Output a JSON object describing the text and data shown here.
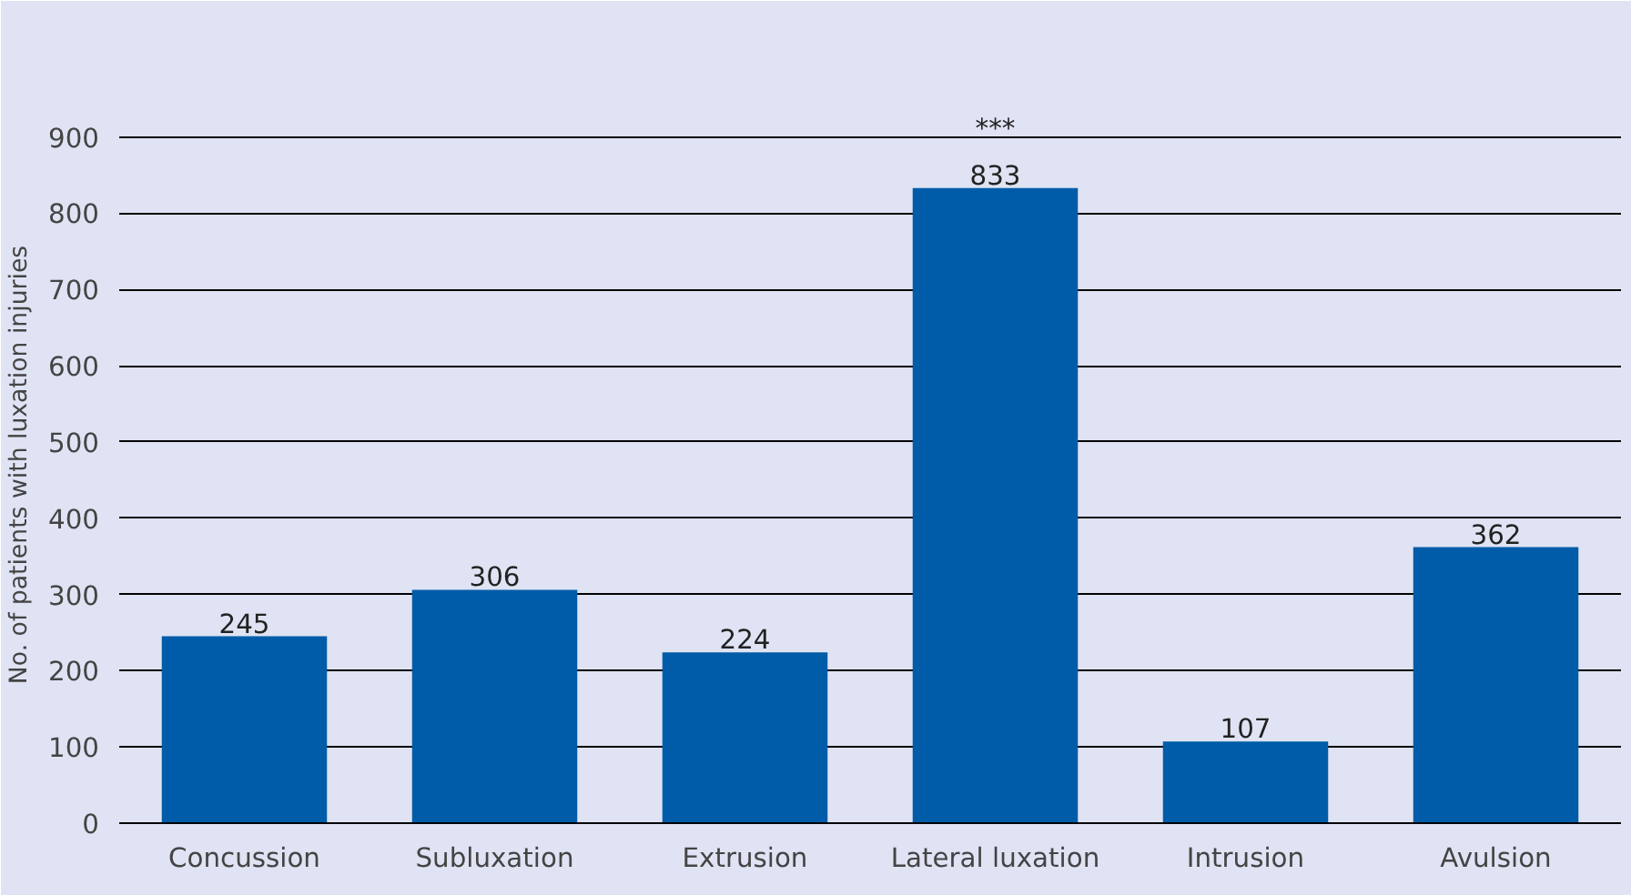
{
  "chart_data": {
    "type": "bar",
    "ylabel": "No. of patients with luxation injuries",
    "categories": [
      "Concussion",
      "Subluxation",
      "Extrusion",
      "Lateral luxation",
      "Intrusion",
      "Avulsion"
    ],
    "values": [
      245,
      306,
      224,
      833,
      107,
      362
    ],
    "color": "#005ca8",
    "data_labels": true,
    "ylim": [
      0,
      940
    ],
    "yticks": [
      0,
      100,
      200,
      300,
      400,
      500,
      600,
      700,
      800,
      900
    ],
    "grid": "y",
    "annotations": [
      "***"
    ]
  }
}
